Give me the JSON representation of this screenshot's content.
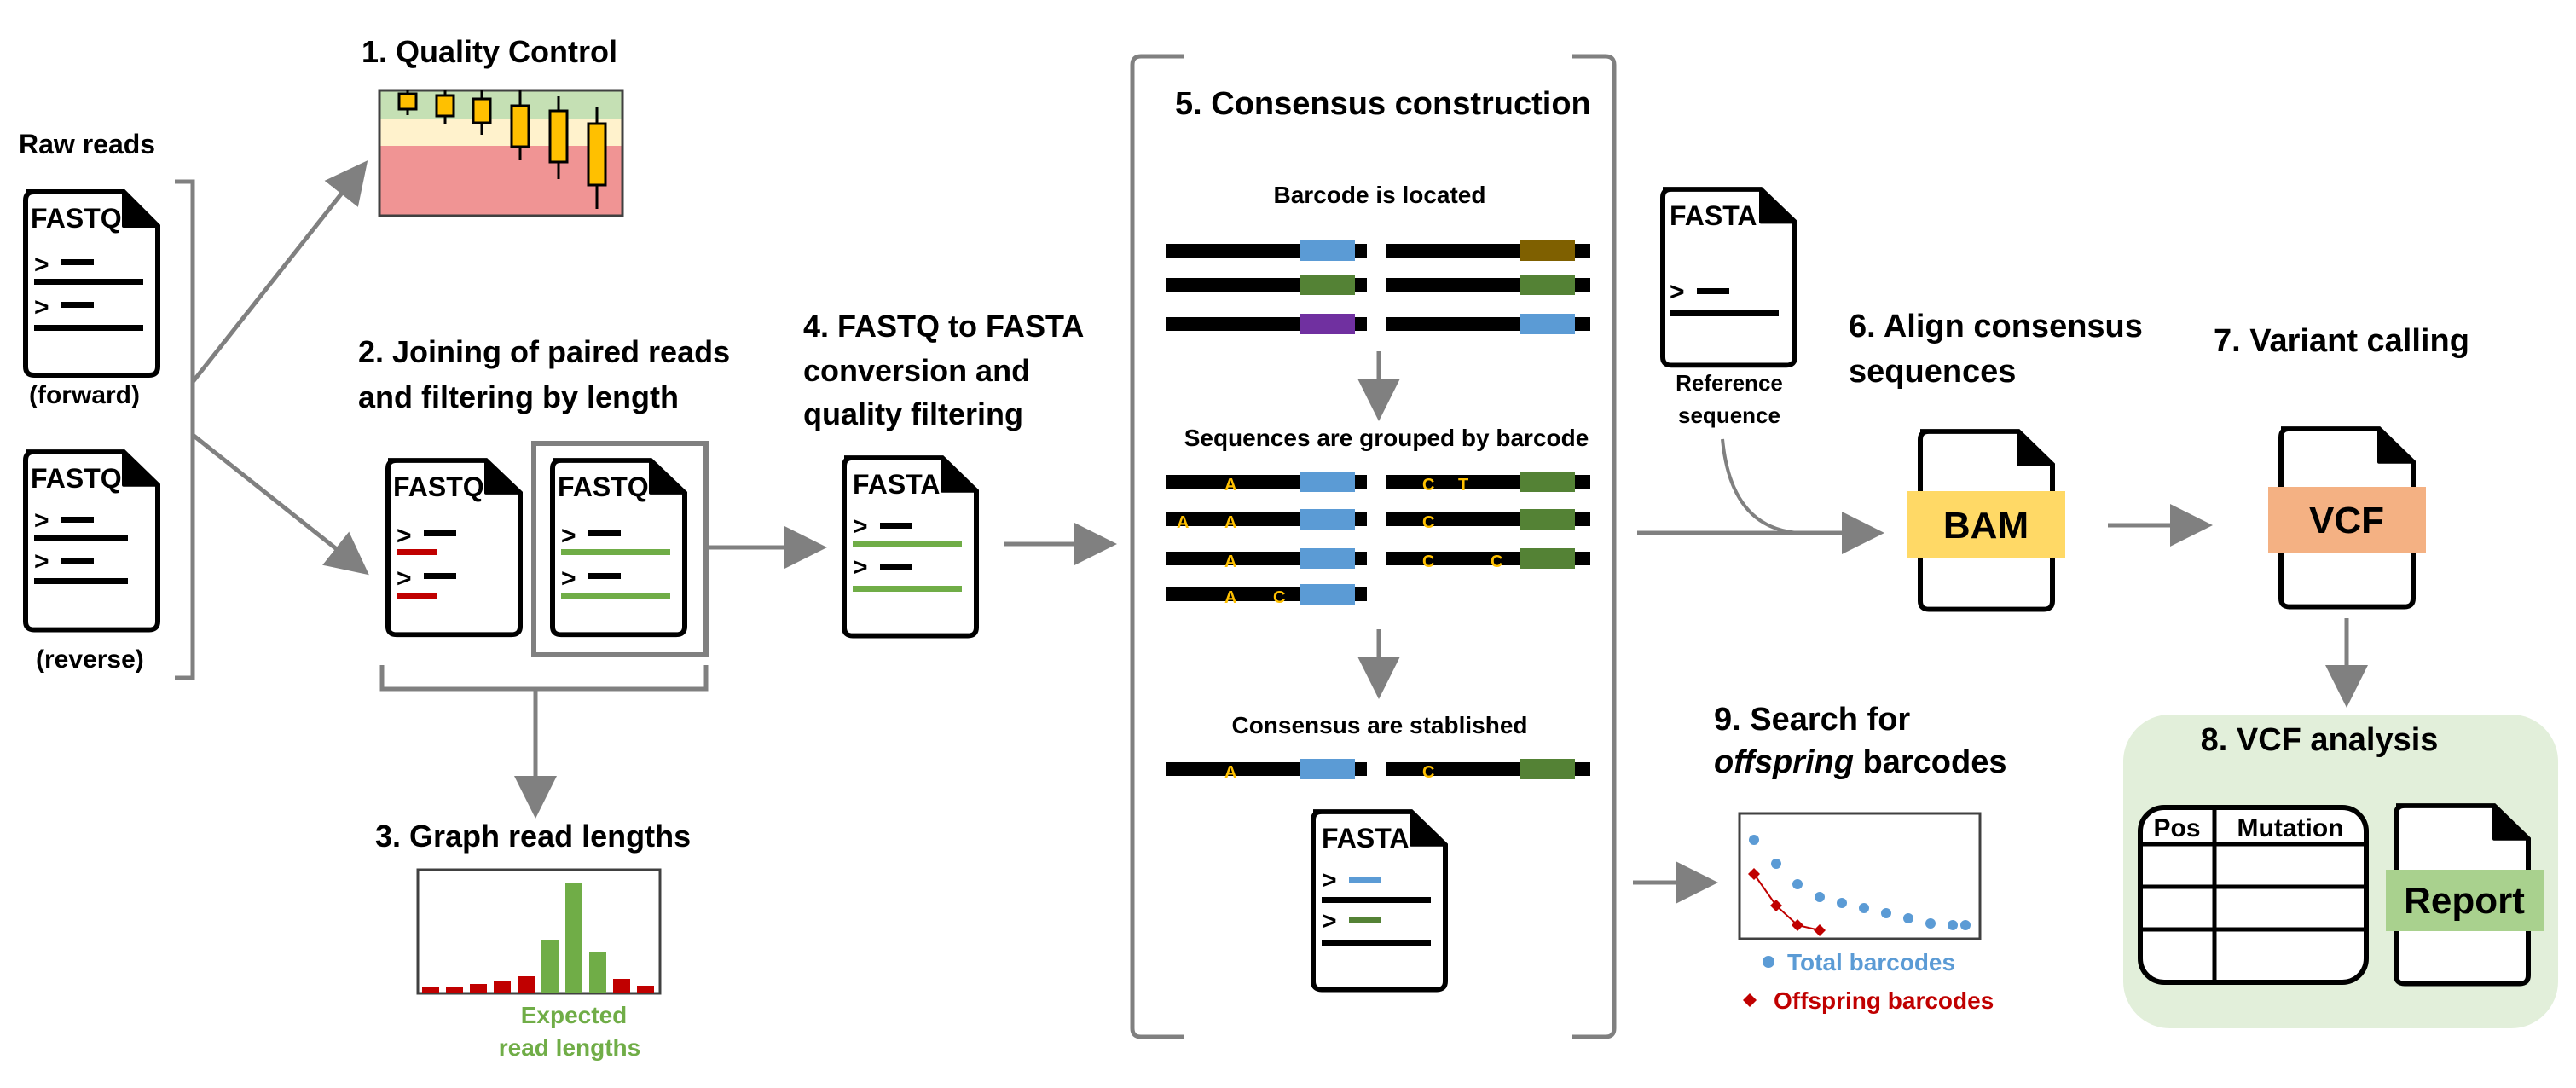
{
  "raw_reads": {
    "title": "Raw reads",
    "forward_caption": "(forward)",
    "reverse_caption": "(reverse)",
    "file_label": "FASTQ",
    "gt": ">"
  },
  "step1": {
    "title": "1. Quality Control"
  },
  "step2": {
    "line1": "2. Joining of paired reads",
    "line2": "and filtering by length",
    "file_label": "FASTQ"
  },
  "step3": {
    "title": "3. Graph read lengths",
    "caption_line1": "Expected",
    "caption_line2": "read lengths"
  },
  "step4": {
    "line1": "4. FASTQ to FASTA",
    "line2": "conversion and",
    "line3": "quality filtering",
    "file_label": "FASTA"
  },
  "step5": {
    "title": "5. Consensus construction",
    "sub1": "Barcode is located",
    "sub2": "Sequences are grouped by barcode",
    "sub3": "Consensus are stablished",
    "file_label": "FASTA",
    "bases": {
      "a": "A",
      "c": "C",
      "t": "T"
    }
  },
  "reference": {
    "file_label": "FASTA",
    "caption_line1": "Reference",
    "caption_line2": "sequence"
  },
  "step6": {
    "line1": "6. Align consensus",
    "line2": "sequences",
    "badge": "BAM"
  },
  "step7": {
    "title": "7. Variant calling",
    "badge": "VCF"
  },
  "step8": {
    "title": "8. VCF analysis",
    "col1": "Pos",
    "col2": "Mutation",
    "badge": "Report"
  },
  "step9": {
    "line1": "9. Search for",
    "line2_italic": "offspring",
    "line2_rest": " barcodes",
    "legend_total": "Total barcodes",
    "legend_offspring": "Offspring barcodes"
  },
  "colors": {
    "blue": "#5b9bd5",
    "green": "#70ad47",
    "dark_green": "#548235",
    "red": "#c00000",
    "purple": "#7030a0",
    "brown": "#7f6000",
    "orange_base": "#ffc000",
    "gray_arrow": "#808080",
    "bam_yellow": "#ffd966",
    "vcf_salmon": "#f4b183",
    "report_green": "#a9d18e",
    "panel_bg": "#e2efda"
  }
}
